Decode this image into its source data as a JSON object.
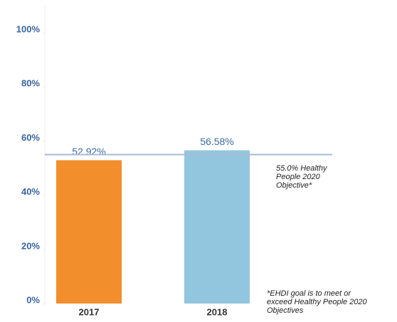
{
  "chart_data": {
    "type": "bar",
    "categories": [
      "2017",
      "2018"
    ],
    "values": [
      52.92,
      56.58
    ],
    "value_labels": [
      "52.92%",
      "56.58%"
    ],
    "colors": [
      "#f28e2b",
      "#92c5de"
    ],
    "ylim": [
      0,
      110
    ],
    "yticks": [
      {
        "value": 0,
        "label": "0%"
      },
      {
        "value": 20,
        "label": "20%"
      },
      {
        "value": 40,
        "label": "40%"
      },
      {
        "value": 60,
        "label": "60%"
      },
      {
        "value": 80,
        "label": "80%"
      },
      {
        "value": 100,
        "label": "100%"
      }
    ],
    "reference_line": {
      "value": 55,
      "label": "55.0% Healthy People 2020 Objective*",
      "color": "#a9bad6"
    },
    "footnote": "*EHDI goal is to meet or exceed Healthy People 2020 Objectives"
  }
}
